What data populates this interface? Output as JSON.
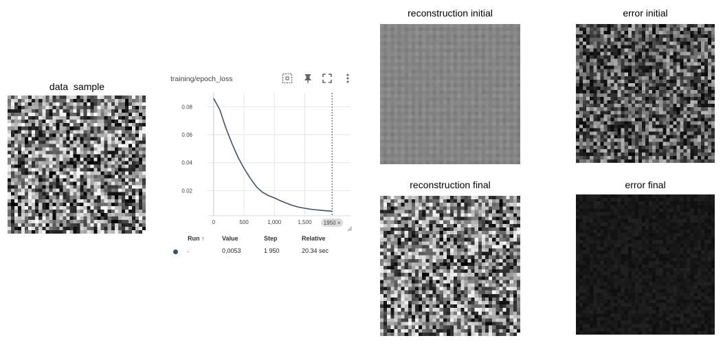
{
  "panels": {
    "data_sample": {
      "title": "data  sample"
    },
    "reconstruction_initial": {
      "title": "reconstruction initial"
    },
    "error_initial": {
      "title": "error initial"
    },
    "reconstruction_final": {
      "title": "reconstruction final"
    },
    "error_final": {
      "title": "error final"
    }
  },
  "tensorboard": {
    "title": "training/epoch_loss",
    "icons": [
      "fit-domain-icon",
      "pin-icon",
      "fullscreen-icon",
      "more-vert-icon"
    ],
    "step_badge": "1950 ×",
    "table": {
      "headers": {
        "run": "Run ↑",
        "value": "Value",
        "step": "Step",
        "relative": "Relative"
      },
      "row": {
        "run": ".",
        "value": "0,0053",
        "step": "1 950",
        "relative": "20.34 sec"
      }
    },
    "colors": {
      "line": "#425066",
      "run_dot": "#425066",
      "cursor": "#444444"
    }
  },
  "chart_data": {
    "type": "line",
    "title": "training/epoch_loss",
    "xlabel": "",
    "ylabel": "",
    "xlim": [
      -100,
      2050
    ],
    "ylim": [
      0.004,
      0.09
    ],
    "xticks": [
      0,
      500,
      1000,
      1500
    ],
    "xtick_labels": [
      "0",
      "500",
      "1,000",
      "1,500"
    ],
    "yticks": [
      0.02,
      0.04,
      0.06,
      0.08
    ],
    "ytick_labels": [
      "0.02",
      "0.04",
      "0.06",
      "0.08"
    ],
    "grid": true,
    "cursor_x": 1950,
    "series": [
      {
        "x": [
          0,
          100,
          200,
          300,
          400,
          500,
          600,
          700,
          800,
          900,
          1000,
          1100,
          1200,
          1300,
          1400,
          1500,
          1600,
          1700,
          1800,
          1950
        ],
        "y": [
          0.086,
          0.078,
          0.065,
          0.054,
          0.044,
          0.036,
          0.029,
          0.023,
          0.019,
          0.0165,
          0.0148,
          0.0128,
          0.011,
          0.0094,
          0.0082,
          0.0074,
          0.0067,
          0.0062,
          0.0058,
          0.0053
        ]
      }
    ]
  }
}
